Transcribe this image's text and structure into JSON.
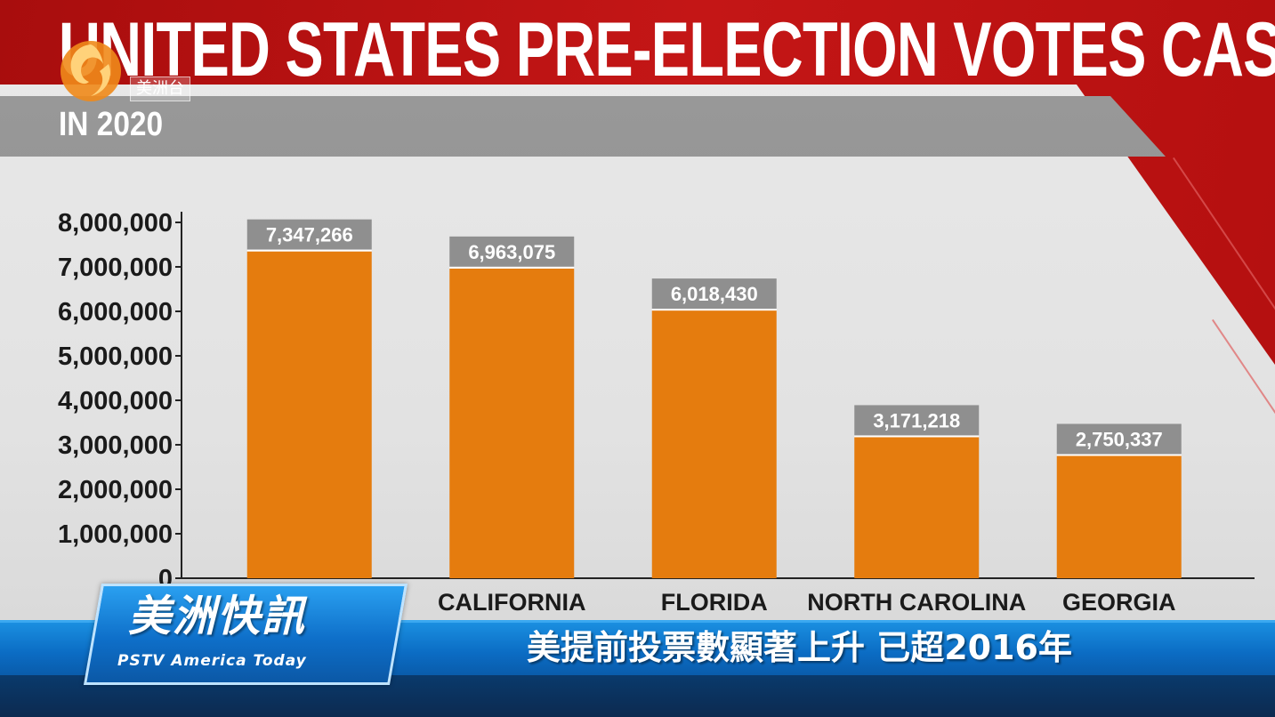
{
  "header": {
    "title": "UNITED STATES PRE-ELECTION VOTES CAST",
    "subtitle": "IN 2020"
  },
  "logo": {
    "label": "美洲台"
  },
  "colors": {
    "bar": "#e57c0e",
    "data_label_bg": "#8f8f8f",
    "accent_red": "#c41616",
    "banner_blue": "#0b6cc4"
  },
  "chart_data": {
    "type": "bar",
    "title": "UNITED STATES PRE-ELECTION VOTES CAST",
    "subtitle": "IN 2020",
    "categories": [
      "",
      "CALIFORNIA",
      "FLORIDA",
      "NORTH CAROLINA",
      "GEORGIA"
    ],
    "values": [
      7347266,
      6963075,
      6018430,
      3171218,
      2750337
    ],
    "data_labels": [
      "7,347,266",
      "6,963,075",
      "6,018,430",
      "3,171,218",
      "2,750,337"
    ],
    "yticks": [
      "0",
      "1,000,000",
      "2,000,000",
      "3,000,000",
      "4,000,000",
      "5,000,000",
      "6,000,000",
      "7,000,000",
      "8,000,000"
    ],
    "ylim": [
      0,
      8000000
    ],
    "xlabel": "",
    "ylabel": "",
    "grid": false,
    "legend": "none"
  },
  "lower_third": {
    "brand": "美洲快訊",
    "brand_sub": "PSTV America Today",
    "headline": "美提前投票數顯著上升  已超2016年"
  }
}
